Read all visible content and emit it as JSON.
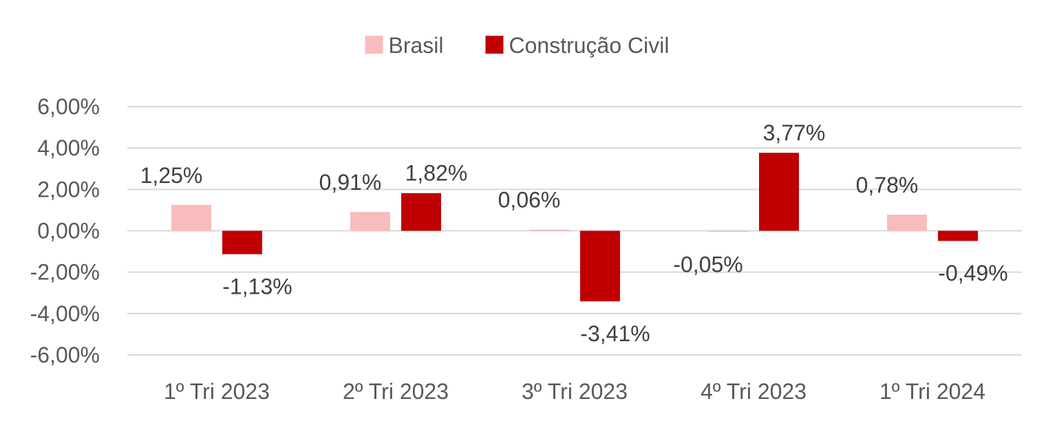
{
  "chart_data": {
    "type": "bar",
    "categories": [
      "1º Tri 2023",
      "2º Tri 2023",
      "3º Tri 2023",
      "4º Tri 2023",
      "1º Tri 2024"
    ],
    "series": [
      {
        "name": "Brasil",
        "color": "#f8bcbc",
        "values": [
          1.25,
          0.91,
          0.06,
          -0.05,
          0.78
        ],
        "labels": [
          "1,25%",
          "0,91%",
          "0,06%",
          "-0,05%",
          "0,78%"
        ]
      },
      {
        "name": "Construção Civil",
        "color": "#c00000",
        "values": [
          -1.13,
          1.82,
          -3.41,
          3.77,
          -0.49
        ],
        "labels": [
          "-1,13%",
          "1,82%",
          "-3,41%",
          "3,77%",
          "-0,49%"
        ]
      }
    ],
    "yticks": [
      6,
      4,
      2,
      0,
      -2,
      -4,
      -6
    ],
    "ytick_labels": [
      "6,00%",
      "4,00%",
      "2,00%",
      "0,00%",
      "-2,00%",
      "-4,00%",
      "-6,00%"
    ],
    "ylim": [
      -6,
      6
    ],
    "grid": true,
    "legend": "top-center"
  }
}
